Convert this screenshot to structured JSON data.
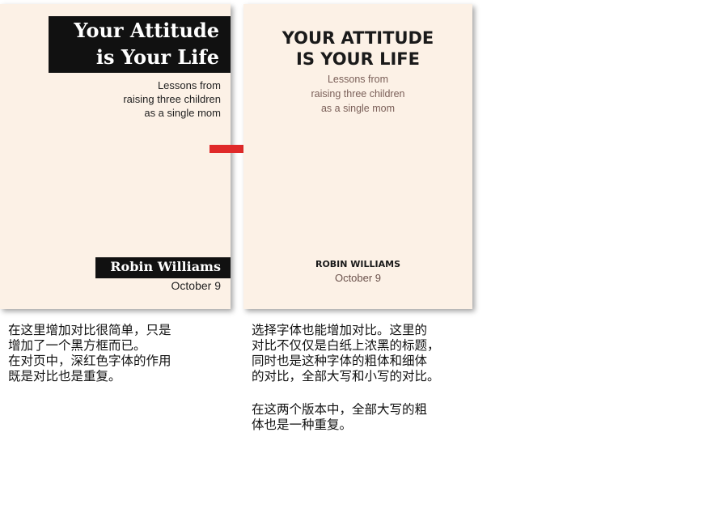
{
  "left_cover": {
    "title_lines": [
      "Your Attitude",
      "is Your Life"
    ],
    "subtitle_lines": [
      "Lessons from",
      "raising three children",
      "as a single mom"
    ],
    "author": "Robin Williams",
    "date": "October 9"
  },
  "right_cover": {
    "title_lines": [
      "YOUR ATTITUDE",
      "IS YOUR LIFE"
    ],
    "subtitle_lines": [
      "Lessons from",
      "raising three children",
      "as a single mom"
    ],
    "author": "ROBIN WILLIAMS",
    "date": "October 9"
  },
  "captions": {
    "left": [
      "在这里增加对比很简单，只是",
      "增加了一个黑方框而已。",
      "在对页中，深红色字体的作用",
      "既是对比也是重复。"
    ],
    "right_1": [
      "选择字体也能增加对比。这里的",
      "对比不仅仅是白纸上浓黑的标题，",
      "同时也是这种字体的粗体和细体",
      "的对比，全部大写和小写的对比。"
    ],
    "right_2": [
      "在这两个版本中，全部大写的粗",
      "体也是一种重复。"
    ]
  },
  "colors": {
    "cover_background": "#fcf1e6",
    "title_box": "#111111",
    "arrow": "#e02a2a",
    "subtitle_right": "#7a5f58"
  },
  "icons": {
    "arrow": "right-arrow-icon"
  }
}
